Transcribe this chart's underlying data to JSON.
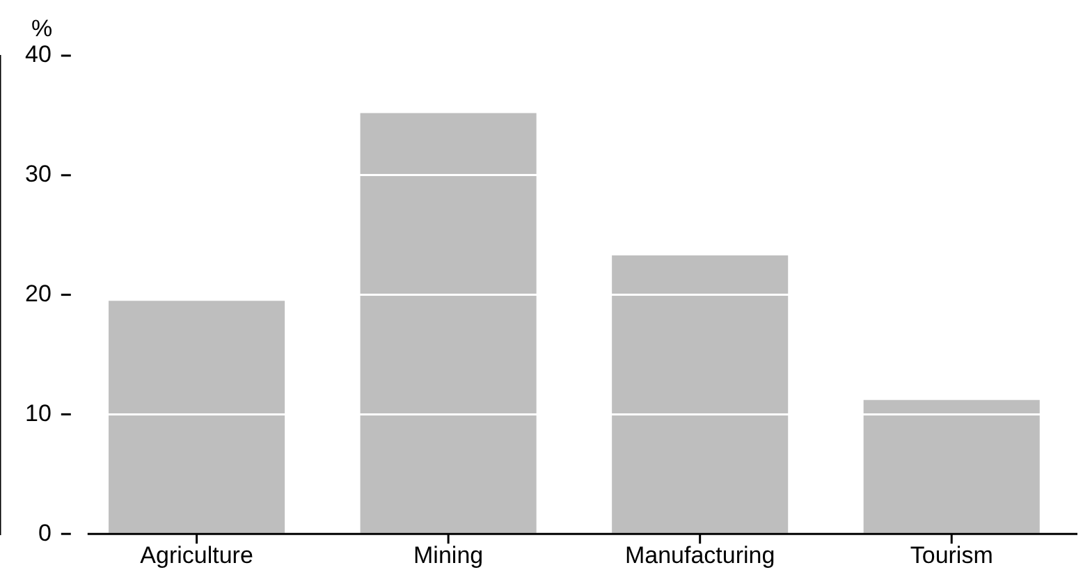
{
  "chart_data": {
    "type": "bar",
    "ylabel": "%",
    "categories": [
      "Agriculture",
      "Mining",
      "Manufacturing",
      "Tourism"
    ],
    "values": [
      19.5,
      35.2,
      23.3,
      11.2
    ],
    "color": "#bebebe",
    "ylim": [
      0,
      40
    ],
    "yticks": [
      0,
      10,
      20,
      30,
      40
    ],
    "grid": "y",
    "legend": false
  }
}
